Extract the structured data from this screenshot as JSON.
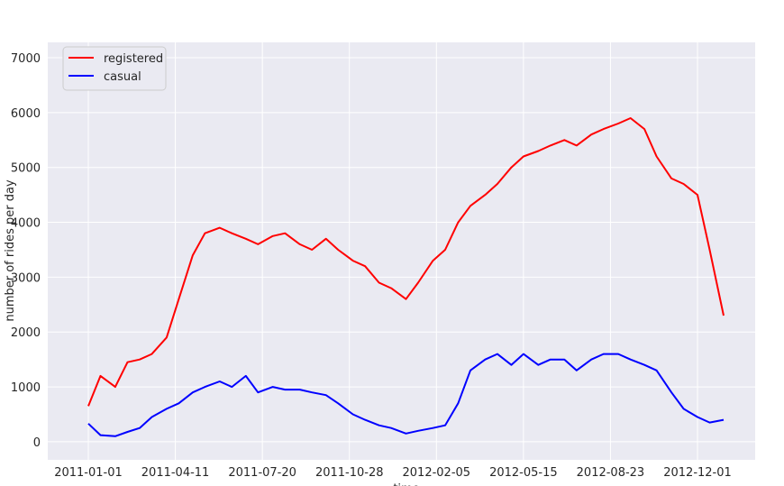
{
  "chart_data": {
    "type": "line",
    "title": "",
    "xlabel": "time",
    "ylabel": "number of rides per day",
    "x_start": "2011-01-01",
    "x_end": "2012-12-31",
    "x_ticks": [
      "2011-01-01",
      "2011-04-11",
      "2011-07-20",
      "2011-10-28",
      "2012-02-05",
      "2012-05-15",
      "2012-08-23",
      "2012-12-01"
    ],
    "y_ticks": [
      0,
      1000,
      2000,
      3000,
      4000,
      5000,
      6000,
      7000
    ],
    "ylim": [
      -330,
      7280
    ],
    "grid": true,
    "legend_position": "top-left",
    "background_color": "#eaeaf2",
    "series": [
      {
        "name": "registered",
        "color": "#ff0000",
        "x": [
          "2011-01-01",
          "2011-01-15",
          "2011-02-01",
          "2011-02-15",
          "2011-03-01",
          "2011-03-15",
          "2011-04-01",
          "2011-04-15",
          "2011-05-01",
          "2011-05-15",
          "2011-06-01",
          "2011-06-15",
          "2011-07-01",
          "2011-07-15",
          "2011-08-01",
          "2011-08-15",
          "2011-09-01",
          "2011-09-15",
          "2011-10-01",
          "2011-10-15",
          "2011-11-01",
          "2011-11-15",
          "2011-12-01",
          "2011-12-15",
          "2012-01-01",
          "2012-01-15",
          "2012-02-01",
          "2012-02-15",
          "2012-03-01",
          "2012-03-15",
          "2012-04-01",
          "2012-04-15",
          "2012-05-01",
          "2012-05-15",
          "2012-06-01",
          "2012-06-15",
          "2012-07-01",
          "2012-07-15",
          "2012-08-01",
          "2012-08-15",
          "2012-09-01",
          "2012-09-15",
          "2012-10-01",
          "2012-10-15",
          "2012-11-01",
          "2012-11-15",
          "2012-12-01",
          "2012-12-15",
          "2012-12-31"
        ],
        "values": [
          650,
          1200,
          1000,
          1450,
          1500,
          1600,
          1900,
          2600,
          3400,
          3800,
          3900,
          3800,
          3700,
          3600,
          3750,
          3800,
          3600,
          3500,
          3700,
          3500,
          3300,
          3200,
          2900,
          2800,
          2600,
          2900,
          3300,
          3500,
          4000,
          4300,
          4500,
          4700,
          5000,
          5200,
          5300,
          5400,
          5500,
          5400,
          5600,
          5700,
          5800,
          5900,
          5700,
          5200,
          4800,
          4700,
          4500,
          3500,
          2300
        ]
      },
      {
        "name": "casual",
        "color": "#0000ff",
        "x": [
          "2011-01-01",
          "2011-01-15",
          "2011-02-01",
          "2011-02-15",
          "2011-03-01",
          "2011-03-15",
          "2011-04-01",
          "2011-04-15",
          "2011-05-01",
          "2011-05-15",
          "2011-06-01",
          "2011-06-15",
          "2011-07-01",
          "2011-07-15",
          "2011-08-01",
          "2011-08-15",
          "2011-09-01",
          "2011-09-15",
          "2011-10-01",
          "2011-10-15",
          "2011-11-01",
          "2011-11-15",
          "2011-12-01",
          "2011-12-15",
          "2012-01-01",
          "2012-01-15",
          "2012-02-01",
          "2012-02-15",
          "2012-03-01",
          "2012-03-15",
          "2012-04-01",
          "2012-04-15",
          "2012-05-01",
          "2012-05-15",
          "2012-06-01",
          "2012-06-15",
          "2012-07-01",
          "2012-07-15",
          "2012-08-01",
          "2012-08-15",
          "2012-09-01",
          "2012-09-15",
          "2012-10-01",
          "2012-10-15",
          "2012-11-01",
          "2012-11-15",
          "2012-12-01",
          "2012-12-15",
          "2012-12-31"
        ],
        "values": [
          330,
          120,
          100,
          180,
          250,
          450,
          600,
          700,
          900,
          1000,
          1100,
          1000,
          1200,
          900,
          1000,
          950,
          950,
          900,
          850,
          700,
          500,
          400,
          300,
          250,
          150,
          200,
          250,
          300,
          700,
          1300,
          1500,
          1600,
          1400,
          1600,
          1400,
          1500,
          1500,
          1300,
          1500,
          1600,
          1600,
          1500,
          1400,
          1300,
          900,
          600,
          450,
          350,
          400
        ]
      }
    ]
  }
}
